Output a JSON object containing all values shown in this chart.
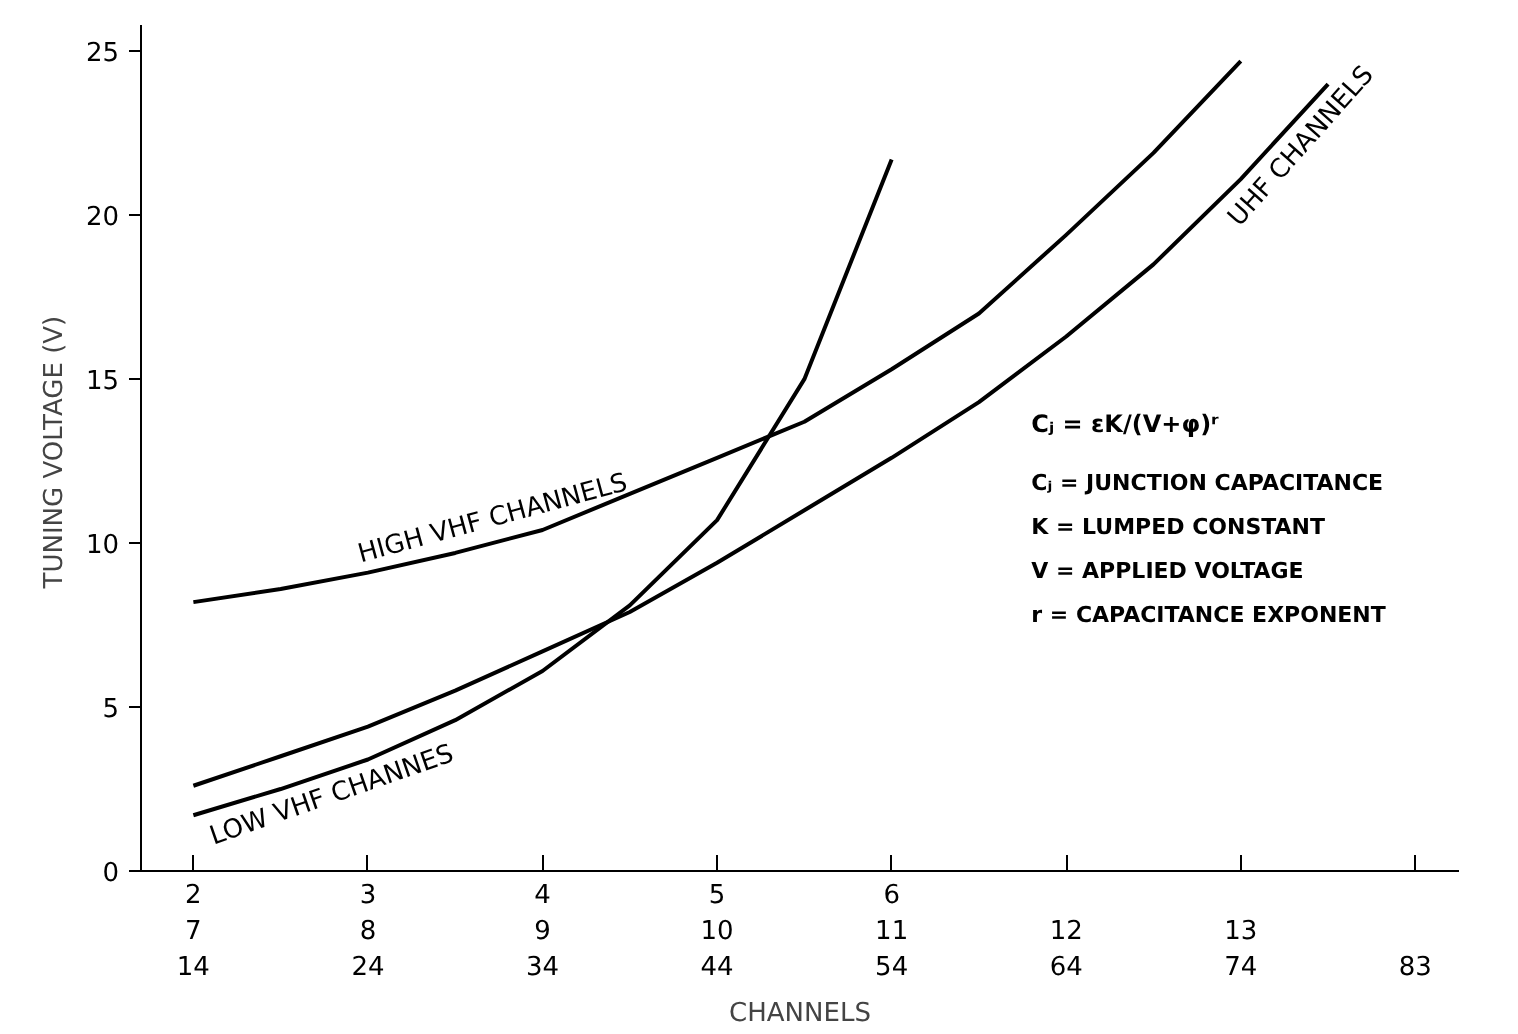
{
  "chart_data": {
    "type": "line",
    "xlabel": "CHANNELS",
    "ylabel": "TUNING VOLTAGE  (V)",
    "ylim": [
      0,
      25.8
    ],
    "yticks": [
      0,
      5,
      10,
      15,
      20,
      25
    ],
    "categories": [
      "2\n7\n14",
      null,
      "3\n8\n24",
      null,
      "4\n9\n34",
      null,
      "5\n10\n44",
      null,
      "6\n11\n54",
      null,
      " \n12\n64",
      null,
      " \n13\n74",
      null,
      " \n \n83"
    ],
    "series": [
      {
        "name": "HIGH VHF CHANNELS",
        "color": "#000000",
        "values": [
          8.2,
          8.6,
          9.1,
          9.7,
          10.4,
          11.5,
          12.6,
          13.7,
          15.3,
          17.0,
          19.4,
          21.9,
          24.7,
          null,
          null
        ]
      },
      {
        "name": "LOW VHF CHANNES",
        "color": "#000000",
        "values": [
          1.7,
          2.5,
          3.4,
          4.6,
          6.1,
          8.1,
          10.7,
          15.0,
          21.7,
          null,
          null,
          null,
          null,
          null,
          null
        ]
      },
      {
        "name": "UHF CHANNELS",
        "color": "#000000",
        "values": [
          2.6,
          3.5,
          4.4,
          5.5,
          6.7,
          7.9,
          9.4,
          11.0,
          12.6,
          14.3,
          16.3,
          18.5,
          21.1,
          24.0,
          null
        ]
      }
    ],
    "annotations": [
      "Cⱼ = εK/(V+φ)ʳ",
      "Cⱼ = JUNCTION CAPACITANCE",
      "K = LUMPED CONSTANT",
      "V = APPLIED VOLTAGE",
      "r = CAPACITANCE EXPONENT"
    ],
    "grid": false,
    "marker": "none",
    "line_style": "solid"
  }
}
